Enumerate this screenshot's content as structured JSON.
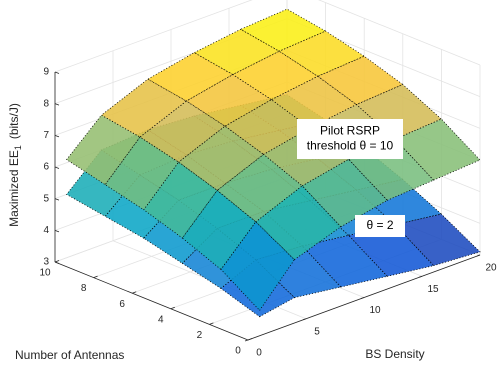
{
  "chart_data": {
    "type": "surface",
    "xlabel": "BS Density",
    "ylabel": "Number of Antennas",
    "zlabel": "Maximized EE",
    "zlabel_sub": "1",
    "zlabel_unit": "(bits/J)",
    "x": [
      1,
      4,
      8,
      12,
      16,
      20
    ],
    "y": [
      0,
      2,
      4,
      6,
      8,
      10
    ],
    "xlim": [
      0,
      20
    ],
    "xticks": [
      0,
      5,
      10,
      15,
      20
    ],
    "ylim": [
      0,
      10
    ],
    "yticks": [
      0,
      2,
      4,
      6,
      8,
      10
    ],
    "zlim": [
      3,
      9
    ],
    "zticks": [
      3,
      4,
      5,
      6,
      7,
      8,
      9
    ],
    "grid": true,
    "colormap": [
      "#352a87",
      "#0f5cdd",
      "#1481d6",
      "#06a4ca",
      "#2eb7a4",
      "#87bf77",
      "#d1bb59",
      "#fec832",
      "#f9fb0e"
    ],
    "clim": [
      3.1,
      8.3
    ],
    "surfaces": [
      {
        "z": [
          [
            3.6,
            3.8,
            3.6,
            3.4,
            3.2,
            3.1
          ],
          [
            4.0,
            4.5,
            4.4,
            4.2,
            4.0,
            3.8
          ],
          [
            4.3,
            5.0,
            5.0,
            4.8,
            4.6,
            4.4
          ],
          [
            4.6,
            5.4,
            5.4,
            5.3,
            5.1,
            4.9
          ],
          [
            4.8,
            5.7,
            5.8,
            5.7,
            5.5,
            5.3
          ],
          [
            5.0,
            6.0,
            6.1,
            6.0,
            5.8,
            5.6
          ]
        ]
      },
      {
        "z": [
          [
            3.8,
            5.0,
            5.5,
            5.8,
            5.9,
            6.0
          ],
          [
            4.6,
            5.7,
            6.3,
            6.6,
            6.7,
            6.8
          ],
          [
            5.1,
            6.2,
            6.8,
            7.1,
            7.3,
            7.4
          ],
          [
            5.5,
            6.6,
            7.2,
            7.5,
            7.7,
            7.8
          ],
          [
            5.8,
            6.9,
            7.5,
            7.8,
            8.0,
            8.1
          ],
          [
            6.1,
            7.1,
            7.7,
            8.0,
            8.2,
            8.3
          ]
        ]
      }
    ],
    "annotations": [
      {
        "lines": [
          "Pilot RSRP",
          "threshold θ = 10"
        ]
      },
      {
        "lines": [
          "θ = 2"
        ]
      }
    ]
  }
}
